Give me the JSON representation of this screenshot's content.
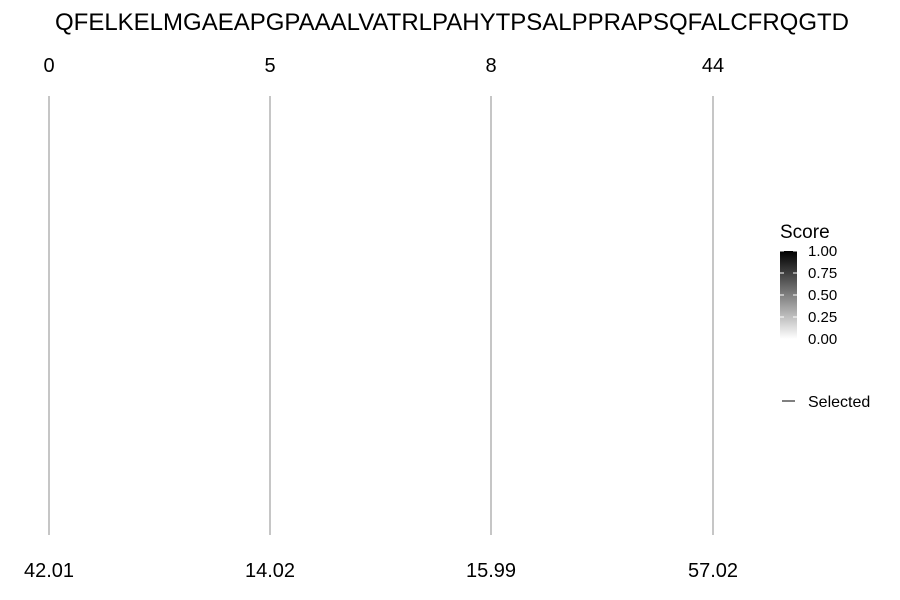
{
  "chart_data": {
    "type": "line",
    "sequence": "QFELKELMGAEAPGPAAALVATRLPAHYTPSALPPRAPSQFALCFRQGTD",
    "markers": [
      {
        "top_label": "0",
        "bottom_label": "42.01"
      },
      {
        "top_label": "5",
        "bottom_label": "14.02"
      },
      {
        "top_label": "8",
        "bottom_label": "15.99"
      },
      {
        "top_label": "44",
        "bottom_label": "57.02"
      }
    ],
    "legend": {
      "title": "Score",
      "ticks": [
        "1.00",
        "0.75",
        "0.50",
        "0.25",
        "0.00"
      ],
      "gradient_top": "#000000",
      "gradient_bottom": "#ffffff",
      "selected_label": "Selected"
    },
    "line_color": "#8c8c8c",
    "grid": false
  }
}
